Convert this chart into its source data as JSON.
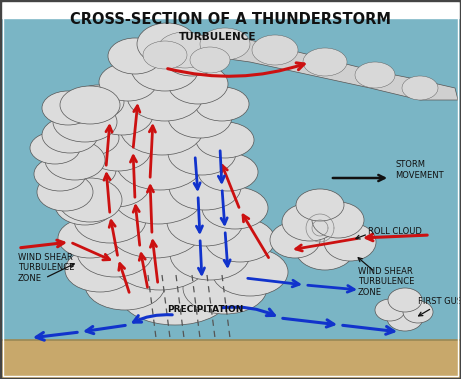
{
  "title": "CROSS-SECTION OF A THUNDERSTORM",
  "title_fontsize": 10.5,
  "bg_sky": "#7ab5c5",
  "ground_color": "#c8a86b",
  "ground_line": "#9a8855",
  "cloud_fill": "#dcdcdc",
  "cloud_edge": "#555555",
  "red": "#cc1111",
  "blue": "#1133cc",
  "black": "#111111",
  "labels": {
    "turbulence": "TURBULENCE",
    "storm_movement": "STORM\nMOVEMENT",
    "wind_shear_left": "WIND SHEAR\nTURBULENCE\nZONE",
    "wind_shear_right": "WIND SHEAR\nTURBULENCE\nZONE",
    "roll_cloud": "ROLL CLOUD",
    "first_gust": "FIRST GUST",
    "precipitation": "PRECIPITATION"
  },
  "fs": 6.5
}
